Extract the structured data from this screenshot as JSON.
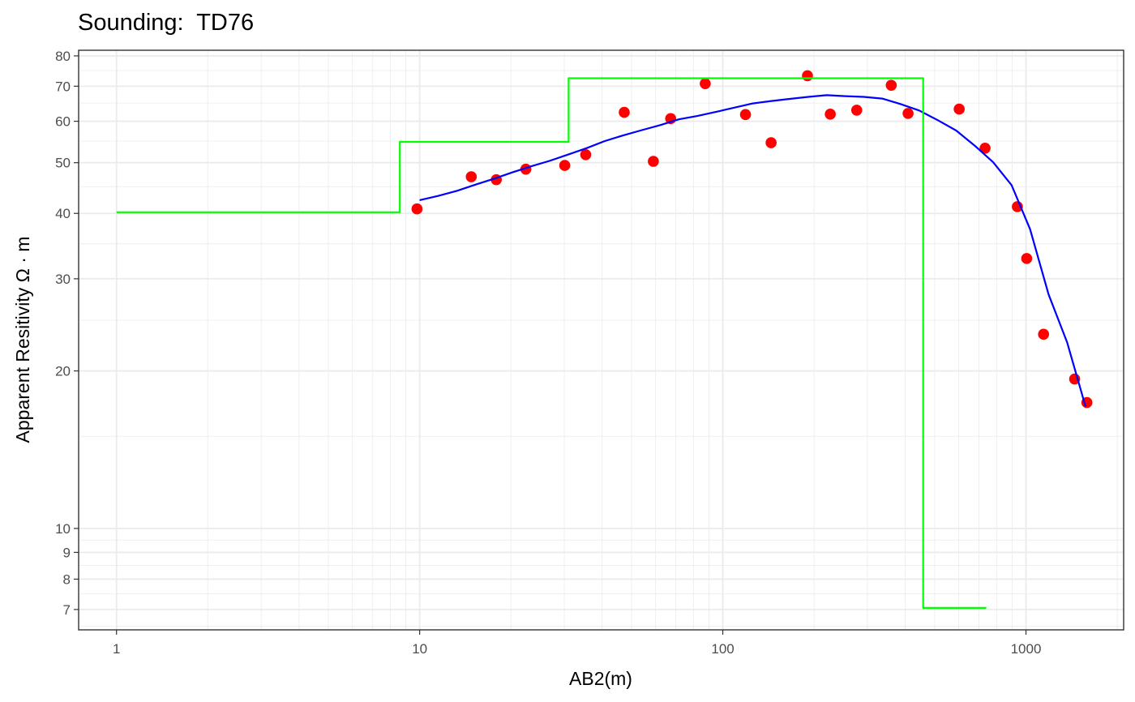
{
  "chart_data": {
    "type": "line",
    "title": "Sounding:  TD76",
    "xlabel": "AB2(m)",
    "ylabel": "Apparent Resitivity Ω · m",
    "x_scale": "log",
    "y_scale": "log",
    "xlim": [
      0.75,
      2100
    ],
    "ylim": [
      6.4,
      82
    ],
    "x_ticks": [
      {
        "value": 1,
        "label": "1"
      },
      {
        "value": 10,
        "label": "10"
      },
      {
        "value": 100,
        "label": "100"
      },
      {
        "value": 1000,
        "label": "1000"
      }
    ],
    "y_ticks": [
      {
        "value": 7,
        "label": "7"
      },
      {
        "value": 8,
        "label": "8"
      },
      {
        "value": 9,
        "label": "9"
      },
      {
        "value": 10,
        "label": "10"
      },
      {
        "value": 20,
        "label": "20"
      },
      {
        "value": 30,
        "label": "30"
      },
      {
        "value": 40,
        "label": "40"
      },
      {
        "value": 50,
        "label": "50"
      },
      {
        "value": 60,
        "label": "60"
      },
      {
        "value": 70,
        "label": "70"
      },
      {
        "value": 80,
        "label": "80"
      }
    ],
    "grid": true,
    "series": [
      {
        "kind": "scatter",
        "color": "#ff0000",
        "points": [
          [
            9.8,
            40.8
          ],
          [
            14.8,
            47.0
          ],
          [
            17.9,
            46.4
          ],
          [
            22.4,
            48.6
          ],
          [
            30.1,
            49.4
          ],
          [
            35.3,
            51.8
          ],
          [
            47.3,
            62.4
          ],
          [
            59.0,
            50.3
          ],
          [
            67.3,
            60.7
          ],
          [
            87.5,
            70.8
          ],
          [
            118.8,
            61.8
          ],
          [
            144.3,
            54.6
          ],
          [
            190.2,
            73.3
          ],
          [
            226.2,
            61.9
          ],
          [
            276.5,
            63.0
          ],
          [
            359.4,
            70.3
          ],
          [
            408.4,
            62.1
          ],
          [
            602.2,
            63.3
          ],
          [
            733.0,
            53.3
          ],
          [
            936.8,
            41.2
          ],
          [
            1005.6,
            32.8
          ],
          [
            1143.0,
            23.5
          ],
          [
            1447.4,
            19.3
          ],
          [
            1588.3,
            17.4
          ]
        ]
      },
      {
        "kind": "line",
        "color": "#0000ff",
        "points": [
          [
            10.0,
            42.4
          ],
          [
            11.5,
            43.2
          ],
          [
            13.3,
            44.2
          ],
          [
            15.3,
            45.4
          ],
          [
            17.6,
            46.6
          ],
          [
            20.2,
            47.9
          ],
          [
            23.3,
            49.2
          ],
          [
            26.8,
            50.4
          ],
          [
            30.8,
            51.8
          ],
          [
            35.5,
            53.3
          ],
          [
            40.8,
            55.0
          ],
          [
            47.0,
            56.4
          ],
          [
            54.1,
            57.7
          ],
          [
            62.2,
            59.0
          ],
          [
            71.6,
            60.5
          ],
          [
            82.4,
            61.4
          ],
          [
            94.8,
            62.5
          ],
          [
            109.1,
            63.7
          ],
          [
            125.5,
            64.9
          ],
          [
            144.5,
            65.6
          ],
          [
            166.3,
            66.2
          ],
          [
            191.4,
            66.8
          ],
          [
            220.2,
            67.3
          ],
          [
            253.4,
            67.0
          ],
          [
            291.6,
            66.8
          ],
          [
            335.6,
            66.3
          ],
          [
            386.2,
            64.7
          ],
          [
            444.3,
            62.9
          ],
          [
            511.3,
            60.3
          ],
          [
            588.4,
            57.6
          ],
          [
            677.1,
            53.9
          ],
          [
            779.2,
            50.1
          ],
          [
            896.7,
            45.3
          ],
          [
            1031.9,
            37.3
          ],
          [
            1187.5,
            28.0
          ],
          [
            1366.5,
            22.7
          ],
          [
            1572.6,
            17.1
          ]
        ]
      },
      {
        "kind": "step",
        "color": "#00ff00",
        "points": [
          [
            1.0,
            40.2
          ],
          [
            8.6,
            40.2
          ],
          [
            8.6,
            54.8
          ],
          [
            31.0,
            54.8
          ],
          [
            31.0,
            72.5
          ],
          [
            458.0,
            72.5
          ],
          [
            458.0,
            7.05
          ],
          [
            740.0,
            7.05
          ]
        ]
      }
    ]
  }
}
